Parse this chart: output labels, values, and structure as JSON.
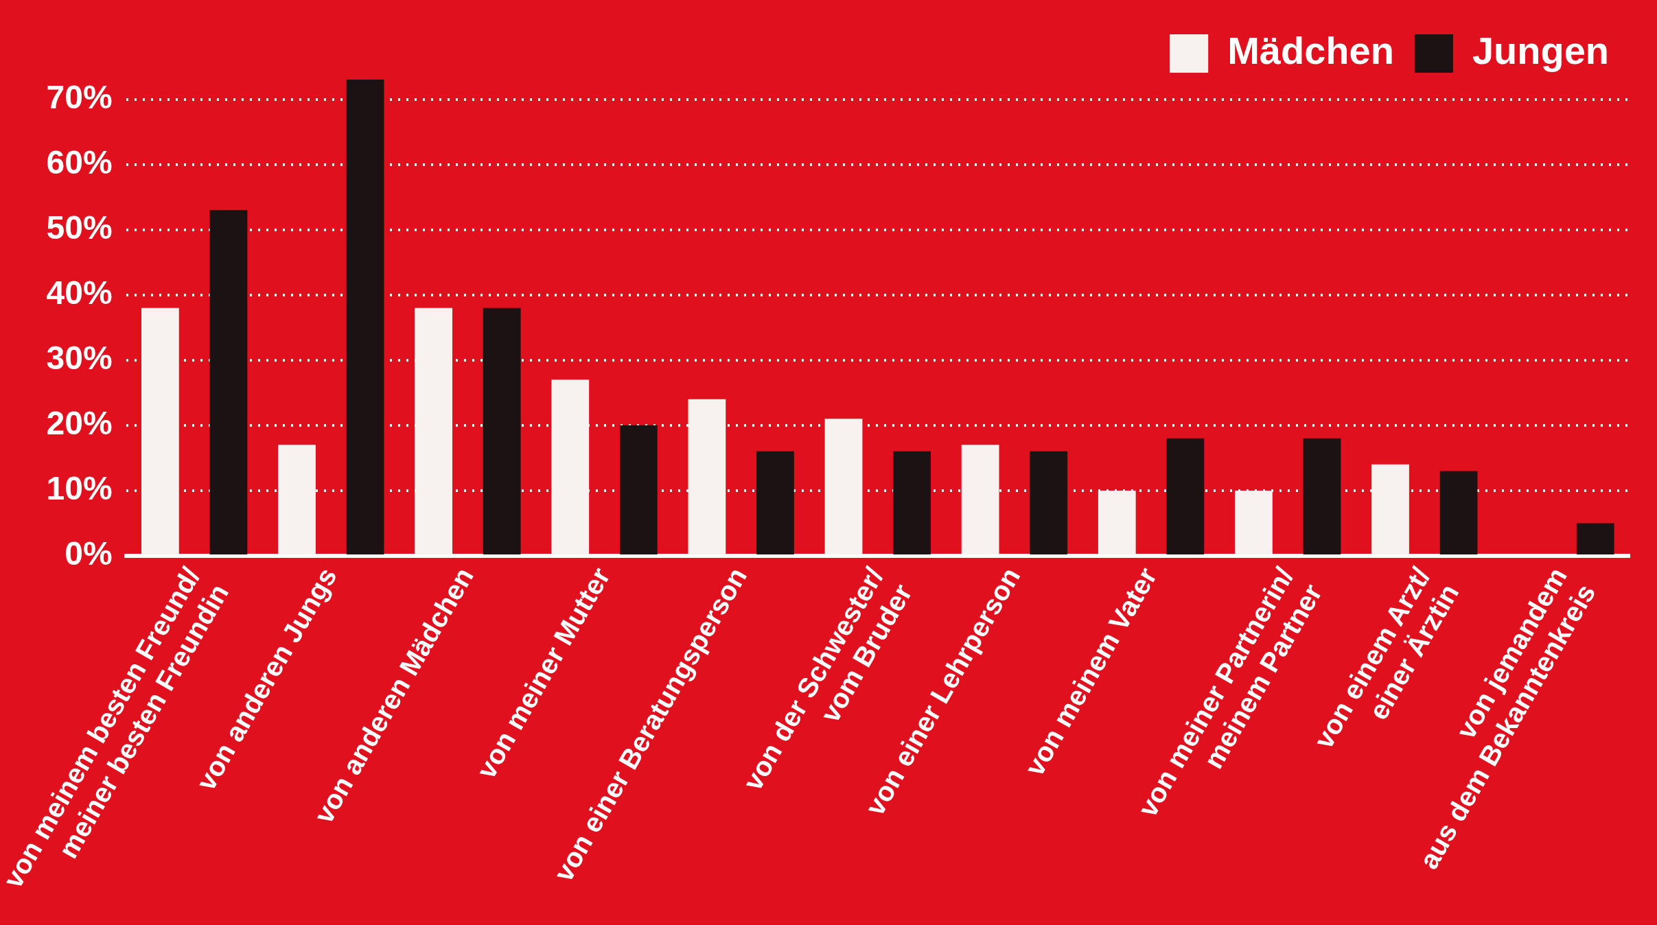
{
  "chart_data": {
    "type": "bar",
    "categories": [
      "von meinem besten Freund/\nmeiner besten Freundin",
      "von anderen Jungs",
      "von anderen Mädchen",
      "von meiner Mutter",
      "von einer Beratungsperson",
      "von der Schwester/\nvom Bruder",
      "von einer Lehrperson",
      "von meinem Vater",
      "von meiner Partnerin/\nmeinem Partner",
      "von einem Arzt/\neiner Ärztin",
      "von jemandem\naus dem Bekanntenkreis"
    ],
    "series": [
      {
        "name": "Mädchen",
        "color": "#f7f2f0",
        "values": [
          38,
          17,
          38,
          27,
          24,
          21,
          17,
          10,
          10,
          14,
          null
        ]
      },
      {
        "name": "Jungen",
        "color": "#1c1214",
        "values": [
          53,
          73,
          38,
          20,
          16,
          16,
          16,
          18,
          18,
          13,
          5
        ]
      }
    ],
    "ylim": [
      0,
      73
    ],
    "yticks": [
      {
        "value": 0,
        "label": "0%"
      },
      {
        "value": 10,
        "label": "10%"
      },
      {
        "value": 20,
        "label": "20%"
      },
      {
        "value": 30,
        "label": "30%"
      },
      {
        "value": 40,
        "label": "40%"
      },
      {
        "value": 50,
        "label": "50%"
      },
      {
        "value": 60,
        "label": "60%"
      },
      {
        "value": 70,
        "label": "70%"
      }
    ],
    "grid": "y",
    "legend": "top right"
  }
}
